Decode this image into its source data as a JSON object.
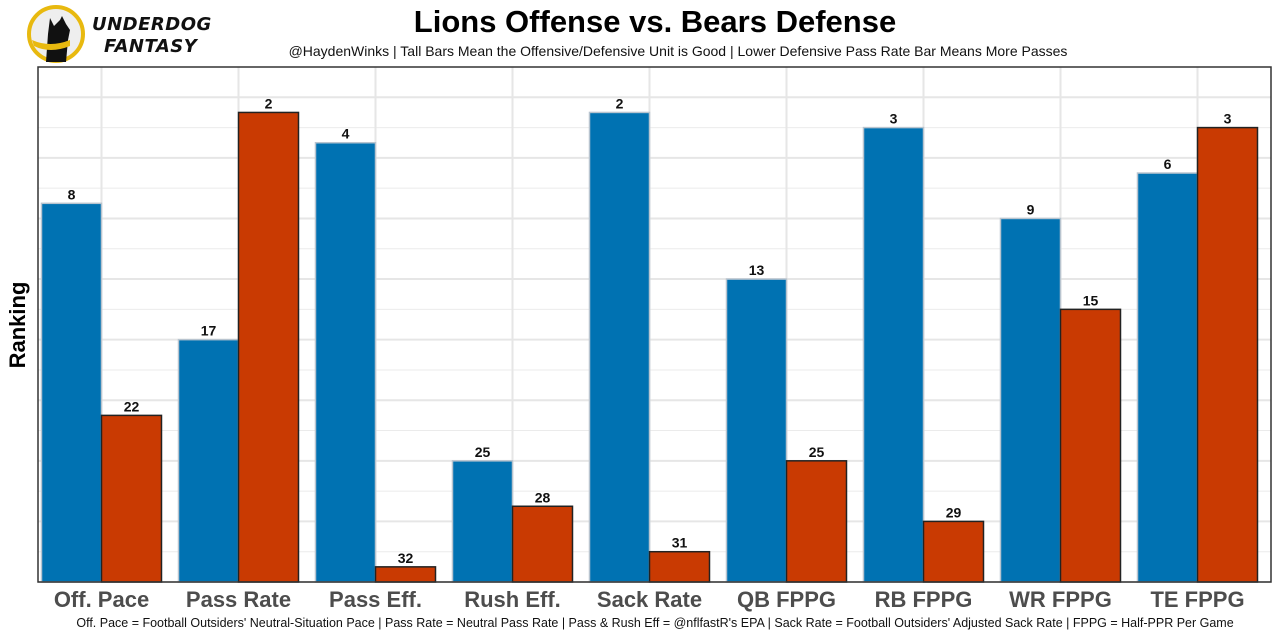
{
  "brand": {
    "name_line1": "UNDERDOG",
    "name_line2": "FANTASY",
    "logo_icon": "dog-silhouette-icon",
    "ring_color": "#e8b90f"
  },
  "chart_data": {
    "type": "bar",
    "title": "Lions Offense vs. Bears Defense",
    "subtitle": "@HaydenWinks | Tall Bars Mean the Offensive/Defensive Unit is Good | Lower Defensive Pass Rate Bar Means More Passes",
    "xlabel": "",
    "ylabel": "Ranking",
    "footnote": "Off. Pace = Football Outsiders' Neutral-Situation Pace | Pass Rate = Neutral Pass Rate | Pass & Rush Eff = @nflfastR's EPA | Sack Rate = Football Outsiders' Adjusted Sack Rate | FPPG = Half-PPR Per Game",
    "categories": [
      "Off. Pace",
      "Pass Rate",
      "Pass Eff.",
      "Rush Eff.",
      "Sack Rate",
      "QB FPPG",
      "RB FPPG",
      "WR FPPG",
      "TE FPPG"
    ],
    "series": [
      {
        "name": "Lions Offense",
        "color": "#0072b2",
        "values": [
          8,
          17,
          4,
          25,
          2,
          13,
          3,
          9,
          6
        ]
      },
      {
        "name": "Bears Defense",
        "color": "#c93a02",
        "values": [
          22,
          2,
          32,
          28,
          31,
          25,
          29,
          15,
          3
        ]
      }
    ],
    "bar_height_rule": "33 - rank",
    "ylim": [
      0,
      34
    ],
    "grid": true,
    "legend": "none"
  }
}
